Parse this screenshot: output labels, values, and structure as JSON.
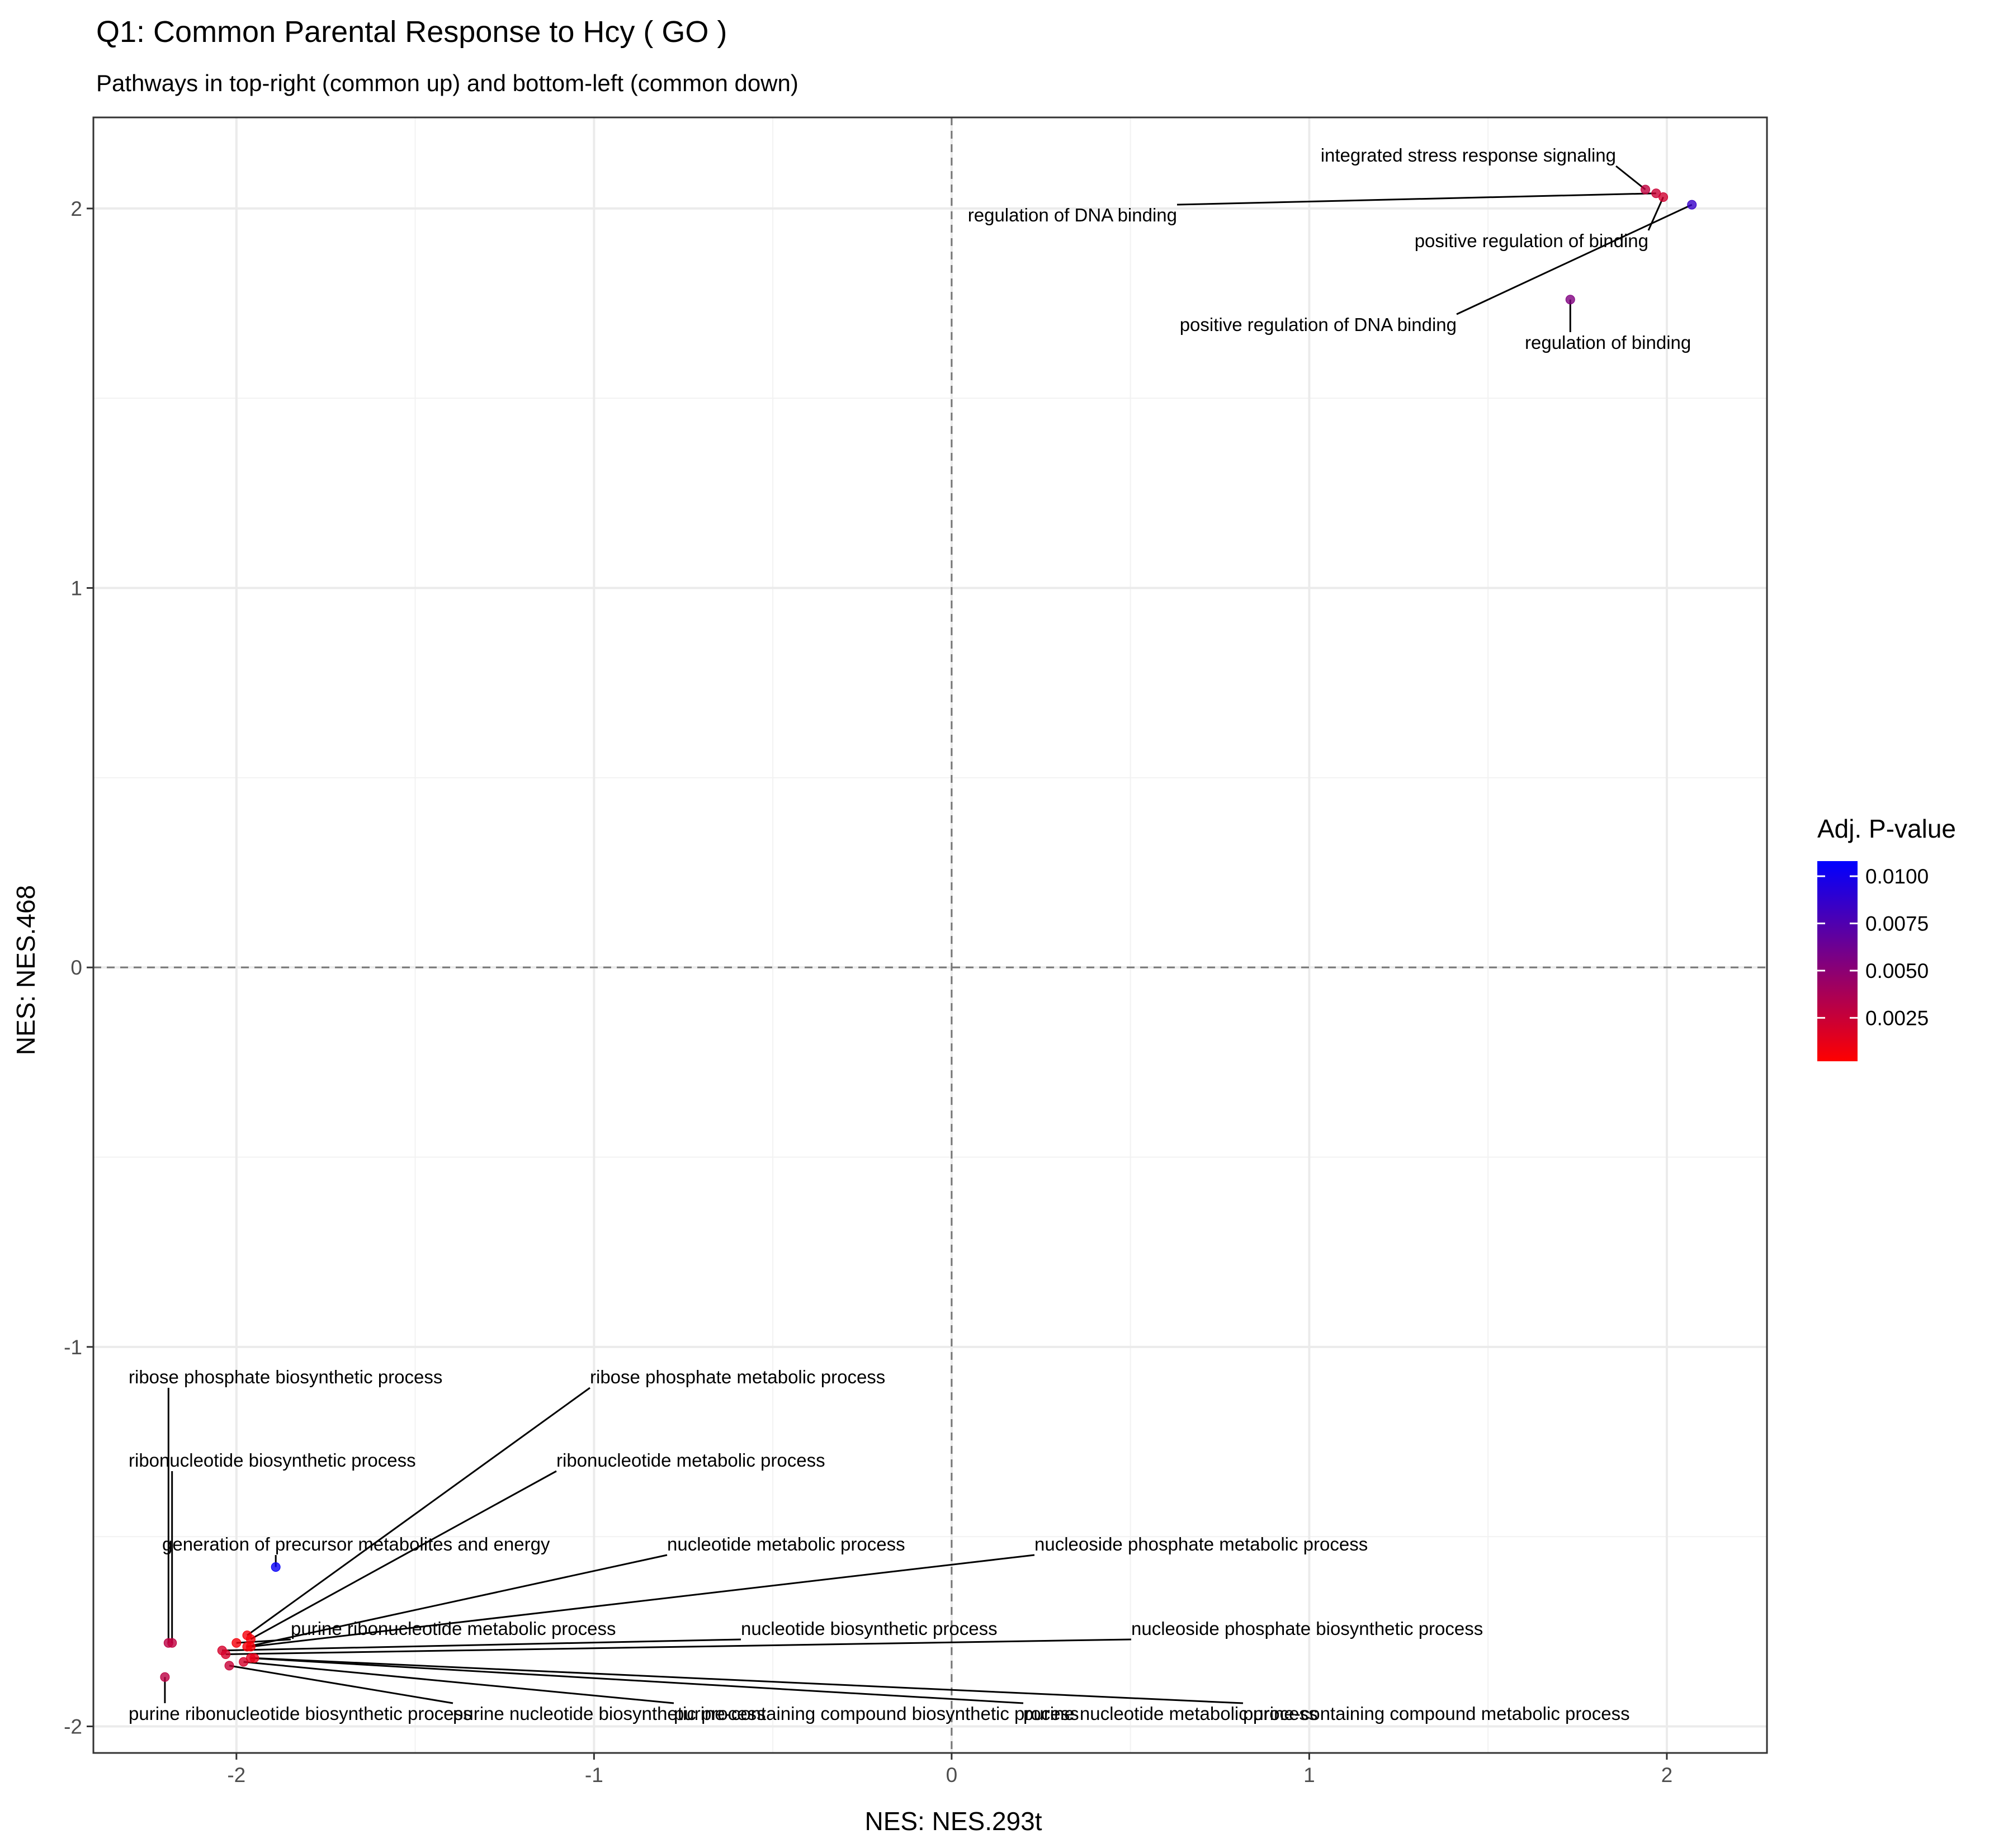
{
  "chart_data": {
    "type": "scatter",
    "title": "Q1: Common Parental Response to Hcy ( GO )",
    "subtitle": "Pathways in top-right (common up) and bottom-left (common down)",
    "xlabel": "NES: NES.293t",
    "ylabel": "NES: NES.468",
    "xlim": [
      -2.4,
      2.28
    ],
    "ylim": [
      -2.07,
      2.24
    ],
    "x_ticks": [
      "-2",
      "-1",
      "0",
      "1",
      "2"
    ],
    "y_ticks": [
      "-2",
      "-1",
      "0",
      "1",
      "2"
    ],
    "grid": true,
    "reference_lines": {
      "x": 0,
      "y": 0,
      "style": "dashed"
    },
    "color_scale": {
      "title": "Adj. P-value",
      "low_color": "#ff0000",
      "high_color": "#0000ff",
      "domain": [
        0.0002,
        0.0108
      ],
      "ticks": [
        "0.0025",
        "0.0050",
        "0.0075",
        "0.0100"
      ]
    },
    "legend_position": "right",
    "points": [
      {
        "label": "integrated stress response signaling",
        "x": 1.94,
        "y": 2.05,
        "padj": 0.0028
      },
      {
        "label": "regulation of DNA binding",
        "x": 1.97,
        "y": 2.04,
        "padj": 0.0024
      },
      {
        "label": "positive regulation of binding",
        "x": 1.99,
        "y": 2.03,
        "padj": 0.0022
      },
      {
        "label": "positive regulation of DNA binding",
        "x": 2.07,
        "y": 2.01,
        "padj": 0.0085
      },
      {
        "label": "regulation of binding",
        "x": 1.73,
        "y": 1.76,
        "padj": 0.0055
      },
      {
        "label": "generation of precursor metabolites and energy",
        "x": -1.89,
        "y": -1.58,
        "padj": 0.0105
      },
      {
        "label": "ribose phosphate biosynthetic process",
        "x": -2.19,
        "y": -1.78,
        "padj": 0.003
      },
      {
        "label": "ribonucleotide biosynthetic process",
        "x": -2.18,
        "y": -1.78,
        "padj": 0.0028
      },
      {
        "label": "purine ribonucleotide biosynthetic process",
        "x": -2.2,
        "y": -1.87,
        "padj": 0.003
      },
      {
        "label": "ribose phosphate metabolic process",
        "x": -1.97,
        "y": -1.76,
        "padj": 0.0006
      },
      {
        "label": "ribonucleotide metabolic process",
        "x": -1.96,
        "y": -1.77,
        "padj": 0.0006
      },
      {
        "label": "purine ribonucleotide metabolic process",
        "x": -2.0,
        "y": -1.78,
        "padj": 0.0006
      },
      {
        "label": "nucleotide metabolic process",
        "x": -1.97,
        "y": -1.79,
        "padj": 0.0006
      },
      {
        "label": "nucleoside phosphate metabolic process",
        "x": -1.96,
        "y": -1.79,
        "padj": 0.0006
      },
      {
        "label": "nucleotide biosynthetic process",
        "x": -2.04,
        "y": -1.8,
        "padj": 0.002
      },
      {
        "label": "nucleoside phosphate biosynthetic process",
        "x": -2.03,
        "y": -1.81,
        "padj": 0.002
      },
      {
        "label": "purine nucleotide biosynthetic process",
        "x": -2.02,
        "y": -1.84,
        "padj": 0.0025
      },
      {
        "label": "purine-containing compound biosynthetic process",
        "x": -1.98,
        "y": -1.83,
        "padj": 0.002
      },
      {
        "label": "purine nucleotide metabolic process",
        "x": -1.96,
        "y": -1.82,
        "padj": 0.0015
      },
      {
        "label": "purine-containing compound metabolic process",
        "x": -1.95,
        "y": -1.82,
        "padj": 0.0012
      }
    ]
  }
}
